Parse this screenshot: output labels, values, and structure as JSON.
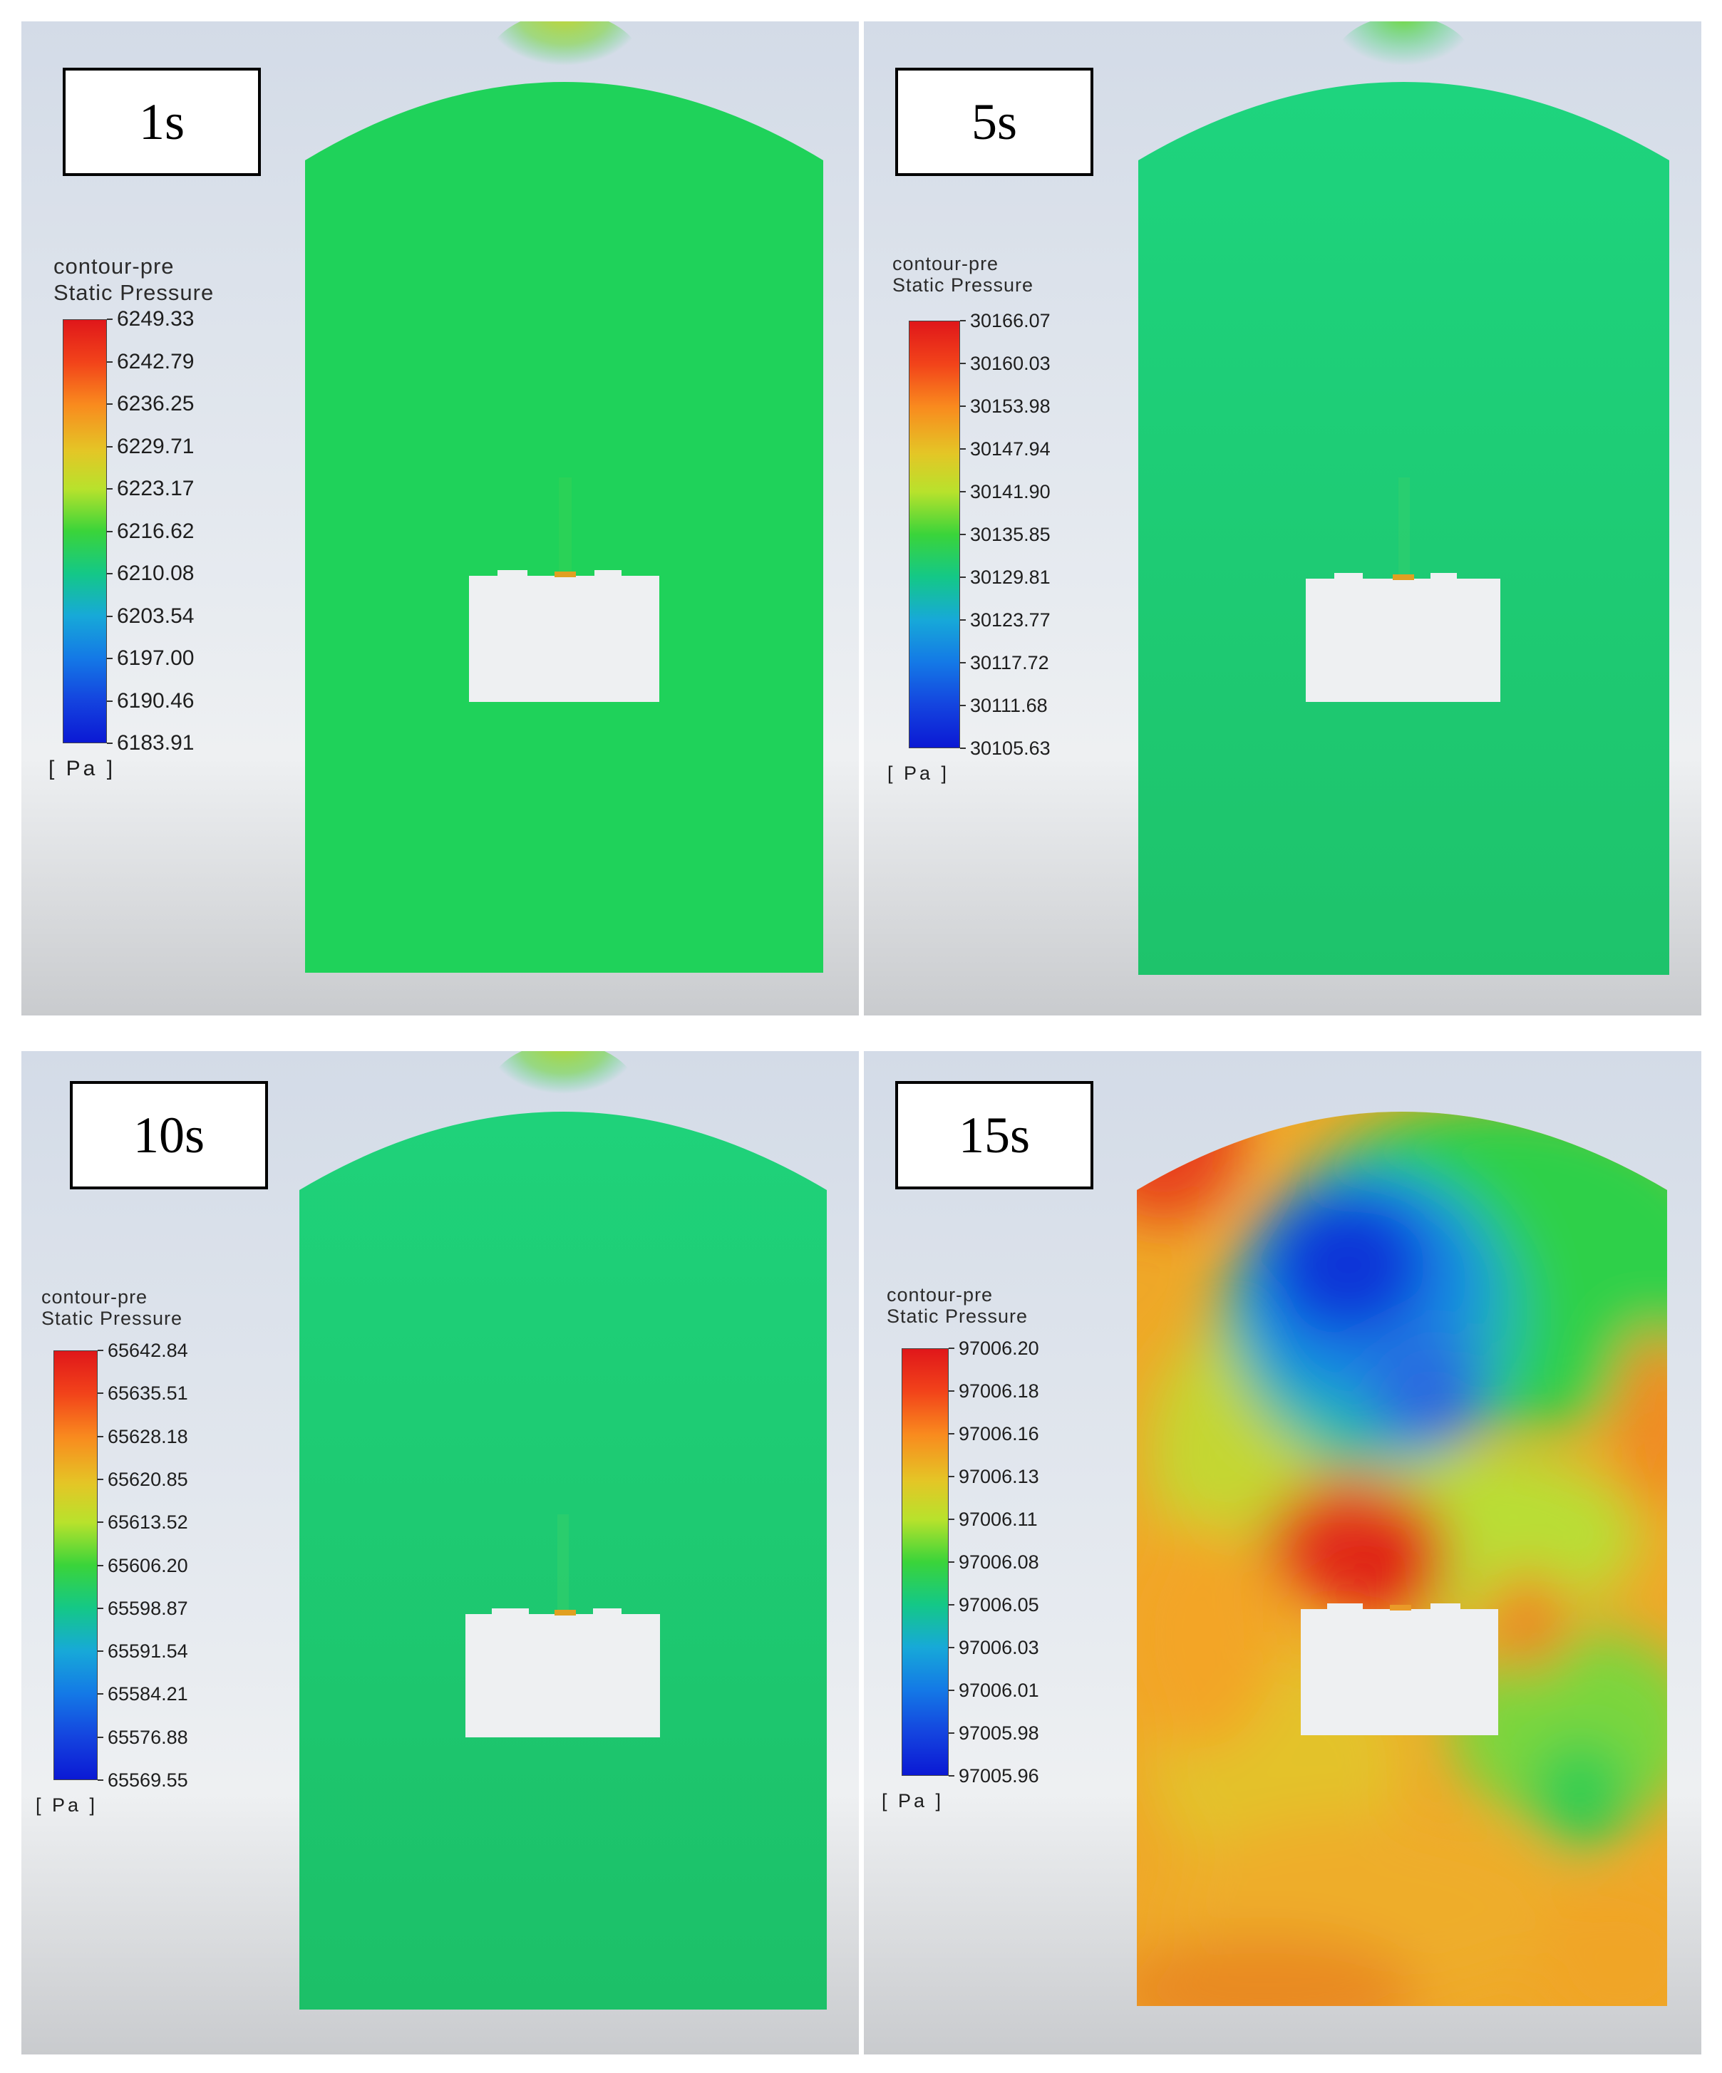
{
  "panels": [
    {
      "time": "1s",
      "legend_title_1": "contour-pre",
      "legend_title_2": "Static Pressure",
      "unit": "[ Pa ]",
      "levels": [
        "6249.33",
        "6242.79",
        "6236.25",
        "6229.71",
        "6223.17",
        "6216.62",
        "6210.08",
        "6203.54",
        "6197.00",
        "6190.46",
        "6183.91"
      ]
    },
    {
      "time": "5s",
      "legend_title_1": "contour-pre",
      "legend_title_2": "Static Pressure",
      "unit": "[ Pa ]",
      "levels": [
        "30166.07",
        "30160.03",
        "30153.98",
        "30147.94",
        "30141.90",
        "30135.85",
        "30129.81",
        "30123.77",
        "30117.72",
        "30111.68",
        "30105.63"
      ]
    },
    {
      "time": "10s",
      "legend_title_1": "contour-pre",
      "legend_title_2": "Static Pressure",
      "unit": "[ Pa ]",
      "levels": [
        "65642.84",
        "65635.51",
        "65628.18",
        "65620.85",
        "65613.52",
        "65606.20",
        "65598.87",
        "65591.54",
        "65584.21",
        "65576.88",
        "65569.55"
      ]
    },
    {
      "time": "15s",
      "legend_title_1": "contour-pre",
      "legend_title_2": "Static Pressure",
      "unit": "[ Pa ]",
      "levels": [
        "97006.20",
        "97006.18",
        "97006.16",
        "97006.13",
        "97006.11",
        "97006.08",
        "97006.05",
        "97006.03",
        "97006.01",
        "97005.98",
        "97005.96"
      ]
    }
  ],
  "colormap": [
    "#e0171a",
    "#f98a1e",
    "#e4c626",
    "#3ad43a",
    "#14c887",
    "#1479e6",
    "#0b19d4"
  ]
}
